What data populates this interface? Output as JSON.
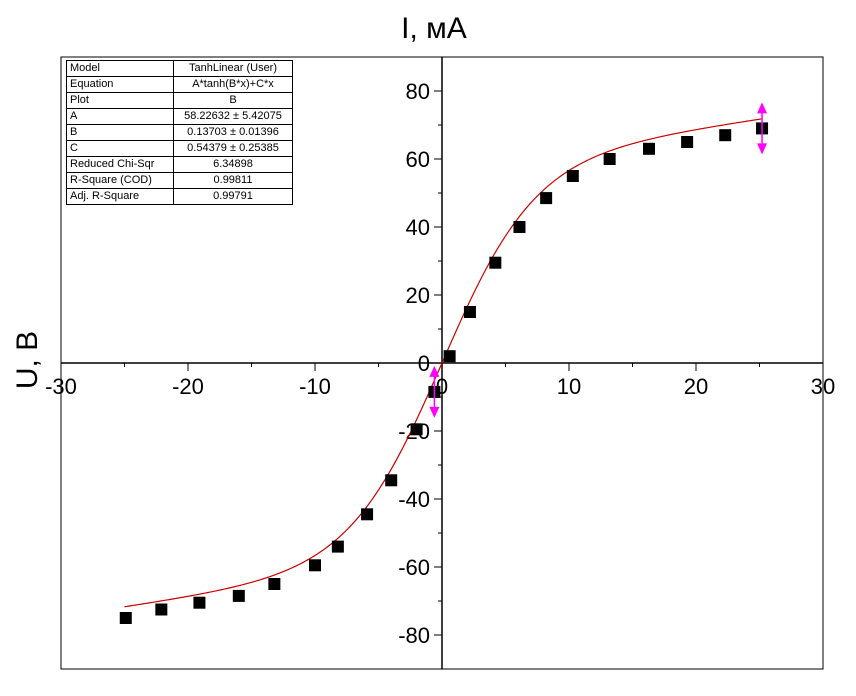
{
  "chart_data": {
    "type": "scatter",
    "xlabel": "I, мА",
    "ylabel": "U, В",
    "xlim": [
      -30,
      30
    ],
    "ylim": [
      -90,
      90
    ],
    "x_ticks": [
      -30,
      -20,
      -10,
      0,
      10,
      20,
      30
    ],
    "y_ticks": [
      -80,
      -60,
      -40,
      -20,
      0,
      20,
      40,
      60,
      80
    ],
    "x_tick_labels": [
      "-30",
      "-20",
      "-10",
      "0",
      "10",
      "20",
      "30"
    ],
    "y_tick_labels": [
      "-80",
      "-60",
      "-40",
      "-20",
      "0",
      "20",
      "40",
      "60",
      "80"
    ],
    "grid": false,
    "series": [
      {
        "marker": "square",
        "color": "#000000",
        "x": [
          -24.9,
          -22.1,
          -19.1,
          -16.0,
          -13.2,
          -10.0,
          -8.2,
          -5.9,
          -4.0,
          -2.0,
          -0.6,
          0.6,
          2.2,
          4.2,
          6.1,
          8.2,
          10.3,
          13.2,
          16.3,
          19.3,
          22.3,
          25.2
        ],
        "y": [
          -75.0,
          -72.5,
          -70.5,
          -68.5,
          -65.0,
          -59.5,
          -54.0,
          -44.5,
          -34.5,
          -19.5,
          -8.5,
          2.0,
          15.0,
          29.5,
          40.0,
          48.5,
          55.0,
          60.0,
          63.0,
          65.0,
          67.0,
          69.0
        ]
      }
    ],
    "fit": {
      "color": "#cc0000",
      "equation": "A*tanh(B*x)+C*x",
      "A": 58.22632,
      "B": 0.13703,
      "C": 0.54379,
      "x_range": [
        -25,
        25.2
      ]
    },
    "range_markers": {
      "color": "#ff00ff",
      "points": [
        {
          "x": -0.6,
          "y": -8.5
        },
        {
          "x": 25.2,
          "y": 69.0
        }
      ]
    }
  },
  "fit_table": {
    "rows": [
      {
        "key": "Model",
        "value": "TanhLinear (User)"
      },
      {
        "key": "Equation",
        "value": "A*tanh(B*x)+C*x"
      },
      {
        "key": "Plot",
        "value": "B"
      },
      {
        "key": "A",
        "value": "58.22632 ± 5.42075"
      },
      {
        "key": "B",
        "value": "0.13703 ± 0.01396"
      },
      {
        "key": "C",
        "value": "0.54379 ± 0.25385"
      },
      {
        "key": "Reduced Chi-Sqr",
        "value": "6.34898"
      },
      {
        "key": "R-Square (COD)",
        "value": "0.99811"
      },
      {
        "key": "Adj. R-Square",
        "value": "0.99791"
      }
    ]
  }
}
